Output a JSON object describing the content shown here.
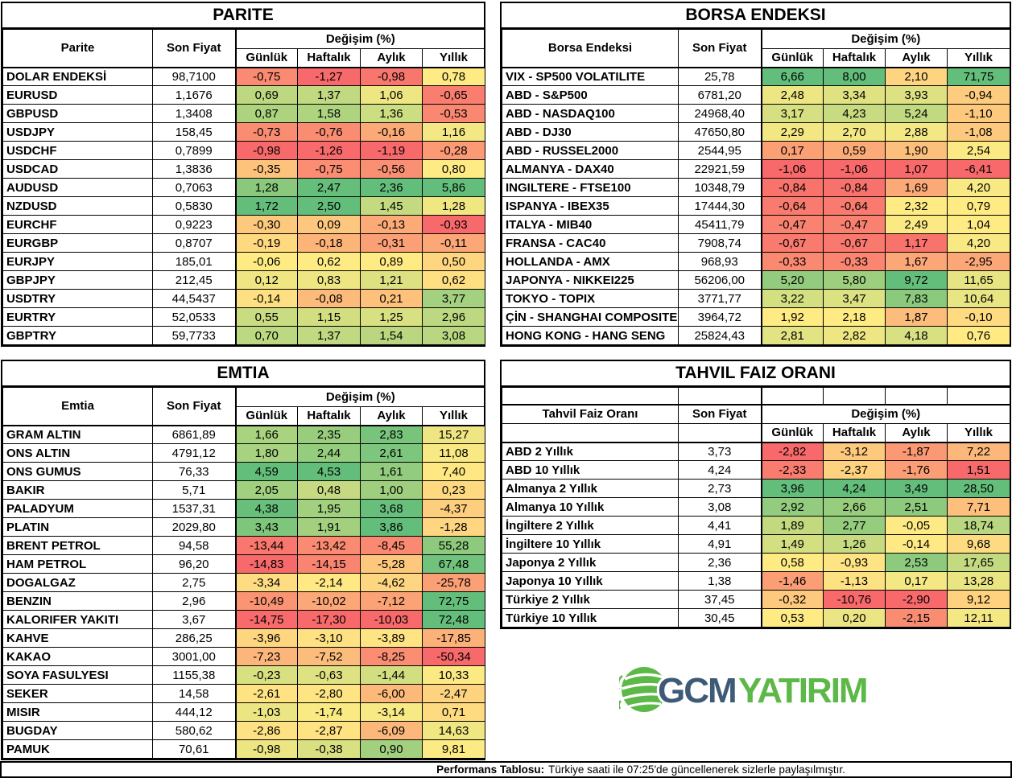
{
  "colors": {
    "scale_min": "#F8696B",
    "scale_mid": "#FFEB84",
    "scale_max": "#63BE7B",
    "logo_gcm": "#3D5B77",
    "logo_green": "#5CB847",
    "border": "#000000"
  },
  "chart_data": [
    {
      "key": "parite",
      "type": "table",
      "title": "PARITE",
      "change_group_header": "Değişim (%)",
      "columns": [
        "Parite",
        "Son Fiyat",
        "Günlük",
        "Haftalık",
        "Aylık",
        "Yıllık"
      ],
      "rows": [
        [
          "DOLAR ENDEKSİ",
          "98,7100",
          "-0,75",
          "-1,27",
          "-0,98",
          "0,78"
        ],
        [
          "EURUSD",
          "1,1676",
          "0,69",
          "1,37",
          "1,06",
          "-0,65"
        ],
        [
          "GBPUSD",
          "1,3408",
          "0,87",
          "1,58",
          "1,36",
          "-0,53"
        ],
        [
          "USDJPY",
          "158,45",
          "-0,73",
          "-0,76",
          "-0,16",
          "1,16"
        ],
        [
          "USDCHF",
          "0,7899",
          "-0,98",
          "-1,26",
          "-1,19",
          "-0,28"
        ],
        [
          "USDCAD",
          "1,3836",
          "-0,35",
          "-0,75",
          "-0,56",
          "0,80"
        ],
        [
          "AUDUSD",
          "0,7063",
          "1,28",
          "2,47",
          "2,36",
          "5,86"
        ],
        [
          "NZDUSD",
          "0,5830",
          "1,72",
          "2,50",
          "1,45",
          "1,28"
        ],
        [
          "EURCHF",
          "0,9223",
          "-0,30",
          "0,09",
          "-0,13",
          "-0,93"
        ],
        [
          "EURGBP",
          "0,8707",
          "-0,19",
          "-0,18",
          "-0,31",
          "-0,11"
        ],
        [
          "EURJPY",
          "185,01",
          "-0,06",
          "0,62",
          "0,89",
          "0,50"
        ],
        [
          "GBPJPY",
          "212,45",
          "0,12",
          "0,83",
          "1,21",
          "0,62"
        ],
        [
          "USDTRY",
          "44,5437",
          "-0,14",
          "-0,08",
          "0,21",
          "3,77"
        ],
        [
          "EURTRY",
          "52,0533",
          "0,55",
          "1,15",
          "1,25",
          "2,96"
        ],
        [
          "GBPTRY",
          "59,7733",
          "0,70",
          "1,37",
          "1,54",
          "3,08"
        ]
      ]
    },
    {
      "key": "borsa",
      "type": "table",
      "title": "BORSA ENDEKSI",
      "change_group_header": "Değişim (%)",
      "columns": [
        "Borsa Endeksi",
        "Son Fiyat",
        "Günlük",
        "Haftalık",
        "Aylık",
        "Yıllık"
      ],
      "rows": [
        [
          "VIX - SP500 VOLATILITE",
          "25,78",
          "6,66",
          "8,00",
          "2,10",
          "71,75"
        ],
        [
          "ABD - S&P500",
          "6781,20",
          "2,48",
          "3,34",
          "3,93",
          "-0,94"
        ],
        [
          "ABD - NASDAQ100",
          "24968,40",
          "3,17",
          "4,23",
          "5,24",
          "-1,10"
        ],
        [
          "ABD - DJ30",
          "47650,80",
          "2,29",
          "2,70",
          "2,88",
          "-1,08"
        ],
        [
          "ABD - RUSSEL2000",
          "2544,95",
          "0,17",
          "0,59",
          "1,90",
          "2,54"
        ],
        [
          "ALMANYA - DAX40",
          "22921,59",
          "-1,06",
          "-1,06",
          "1,07",
          "-6,41"
        ],
        [
          "INGILTERE - FTSE100",
          "10348,79",
          "-0,84",
          "-0,84",
          "1,69",
          "4,20"
        ],
        [
          "ISPANYA - IBEX35",
          "17444,30",
          "-0,64",
          "-0,64",
          "2,32",
          "0,79"
        ],
        [
          "ITALYA - MIB40",
          "45411,79",
          "-0,47",
          "-0,47",
          "2,49",
          "1,04"
        ],
        [
          "FRANSA - CAC40",
          "7908,74",
          "-0,67",
          "-0,67",
          "1,17",
          "4,20"
        ],
        [
          "HOLLANDA - AMX",
          "968,93",
          "-0,33",
          "-0,33",
          "1,67",
          "-2,95"
        ],
        [
          "JAPONYA - NIKKEI225",
          "56206,00",
          "5,20",
          "5,80",
          "9,72",
          "11,65"
        ],
        [
          "TOKYO - TOPIX",
          "3771,77",
          "3,22",
          "3,47",
          "7,83",
          "10,64"
        ],
        [
          "ÇİN - SHANGHAI COMPOSITE",
          "3964,72",
          "1,92",
          "2,18",
          "1,87",
          "-0,10"
        ],
        [
          "HONG KONG - HANG SENG",
          "25824,43",
          "2,81",
          "2,82",
          "4,18",
          "0,76"
        ]
      ]
    },
    {
      "key": "emtia",
      "type": "table",
      "title": "EMTIA",
      "change_group_header": "Değişim (%)",
      "columns": [
        "Emtia",
        "Son Fiyat",
        "Günlük",
        "Haftalık",
        "Aylık",
        "Yıllık"
      ],
      "rows": [
        [
          "GRAM ALTIN",
          "6861,89",
          "1,66",
          "2,35",
          "2,83",
          "15,27"
        ],
        [
          "ONS ALTIN",
          "4791,12",
          "1,80",
          "2,44",
          "2,61",
          "11,08"
        ],
        [
          "ONS GUMUS",
          "76,33",
          "4,59",
          "4,53",
          "1,61",
          "7,40"
        ],
        [
          "BAKIR",
          "5,71",
          "2,05",
          "0,48",
          "1,00",
          "0,23"
        ],
        [
          "PALADYUM",
          "1537,31",
          "4,38",
          "1,95",
          "3,68",
          "-4,37"
        ],
        [
          "PLATIN",
          "2029,80",
          "3,43",
          "1,91",
          "3,86",
          "-1,28"
        ],
        [
          "BRENT PETROL",
          "94,58",
          "-13,44",
          "-13,42",
          "-8,45",
          "55,28"
        ],
        [
          "HAM PETROL",
          "96,20",
          "-14,83",
          "-14,15",
          "-5,28",
          "67,48"
        ],
        [
          "DOGALGAZ",
          "2,75",
          "-3,34",
          "-2,14",
          "-4,62",
          "-25,78"
        ],
        [
          "BENZIN",
          "2,96",
          "-10,49",
          "-10,02",
          "-7,12",
          "72,75"
        ],
        [
          "KALORIFER YAKITI",
          "3,67",
          "-14,75",
          "-17,30",
          "-10,03",
          "72,48"
        ],
        [
          "KAHVE",
          "286,25",
          "-3,96",
          "-3,10",
          "-3,89",
          "-17,85"
        ],
        [
          "KAKAO",
          "3001,00",
          "-7,23",
          "-7,52",
          "-8,25",
          "-50,34"
        ],
        [
          "SOYA FASULYESI",
          "1155,38",
          "-0,23",
          "-0,63",
          "-1,44",
          "10,33"
        ],
        [
          "SEKER",
          "14,58",
          "-2,61",
          "-2,80",
          "-6,00",
          "-2,47"
        ],
        [
          "MISIR",
          "444,12",
          "-1,03",
          "-1,74",
          "-3,14",
          "0,71"
        ],
        [
          "BUGDAY",
          "580,62",
          "-2,86",
          "-2,87",
          "-6,09",
          "14,63"
        ],
        [
          "PAMUK",
          "70,61",
          "-0,98",
          "-0,38",
          "0,90",
          "9,81"
        ]
      ]
    },
    {
      "key": "tahvil",
      "type": "table",
      "title": "TAHVIL FAIZ ORANI",
      "change_group_header": "Değişim (%)",
      "blank_header_row": true,
      "columns": [
        "Tahvil Faiz Oranı",
        "Son Fiyat",
        "Günlük",
        "Haftalık",
        "Aylık",
        "Yıllık"
      ],
      "rows": [
        [
          "ABD 2 Yıllık",
          "3,73",
          "-2,82",
          "-3,12",
          "-1,87",
          "7,22"
        ],
        [
          "ABD 10 Yıllık",
          "4,24",
          "-2,33",
          "-2,37",
          "-1,76",
          "1,51"
        ],
        [
          "Almanya 2 Yıllık",
          "2,73",
          "3,96",
          "4,24",
          "3,49",
          "28,50"
        ],
        [
          "Almanya 10 Yıllık",
          "3,08",
          "2,92",
          "2,66",
          "2,51",
          "7,71"
        ],
        [
          "İngiltere 2 Yıllık",
          "4,41",
          "1,89",
          "2,77",
          "-0,05",
          "18,74"
        ],
        [
          "İngiltere 10 Yıllık",
          "4,91",
          "1,49",
          "1,26",
          "-0,14",
          "9,68"
        ],
        [
          "Japonya 2 Yıllık",
          "2,36",
          "0,58",
          "-0,93",
          "2,53",
          "17,65"
        ],
        [
          "Japonya 10 Yıllık",
          "1,38",
          "-1,46",
          "-1,13",
          "0,17",
          "13,28"
        ],
        [
          "Türkiye 2 Yıllık",
          "37,45",
          "-0,32",
          "-10,76",
          "-2,90",
          "9,12"
        ],
        [
          "Türkiye 10 Yıllık",
          "30,45",
          "0,53",
          "0,20",
          "-2,15",
          "12,11"
        ]
      ]
    }
  ],
  "logo": {
    "gcm": "GCM",
    "yatirim": "YATIRIM"
  },
  "footer": {
    "label": "Performans Tablosu:",
    "text": "Türkiye saati ile 07:25'de güncellenerek sizlerle paylaşılmıştır."
  }
}
